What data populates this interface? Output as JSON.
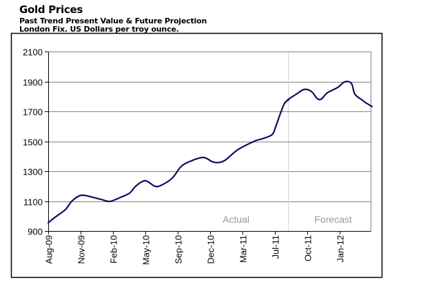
{
  "header": {
    "title": "Gold Prices",
    "subtitle_1": "Past Trend Present Value & Future Projection",
    "subtitle_2": "London Fix. US Dollars per troy ounce."
  },
  "chart_data": {
    "type": "line",
    "title": "Gold Prices",
    "subtitle": "Past Trend Present Value & Future Projection — London Fix. US Dollars per troy ounce.",
    "xlabel": "",
    "ylabel": "US Dollars per troy ounce",
    "ylim": [
      900,
      2100
    ],
    "yticks": [
      900,
      1100,
      1300,
      1500,
      1700,
      1900,
      2100
    ],
    "grid": true,
    "legend": "none",
    "x_tick_labels": [
      "Aug-09",
      "Nov-09",
      "Feb-10",
      "May-10",
      "Sep-10",
      "Dec-10",
      "Mar-11",
      "Jul-11",
      "Oct-11",
      "Jan-12"
    ],
    "x_range": [
      0,
      10
    ],
    "divider_at": 7.4,
    "region_labels": [
      {
        "text": "Actual",
        "at": 5.8
      },
      {
        "text": "Forecast",
        "at": 8.8
      }
    ],
    "series": [
      {
        "name": "Gold Price",
        "color": "#0d0d5e",
        "x": [
          0,
          0.21,
          0.53,
          0.74,
          1.02,
          1.38,
          1.7,
          1.91,
          2.23,
          2.51,
          2.72,
          3.0,
          3.3,
          3.51,
          3.83,
          4.09,
          4.36,
          4.79,
          5.11,
          5.43,
          5.85,
          6.38,
          6.6,
          6.91,
          7.02,
          7.17,
          7.3,
          7.43,
          7.4,
          7.66,
          7.91,
          8.13,
          8.3,
          8.43,
          8.62,
          8.94,
          9.15,
          9.36,
          9.47,
          9.68,
          9.79,
          10.0
        ],
        "values": [
          955,
          992,
          1043,
          1102,
          1139,
          1125,
          1107,
          1098,
          1125,
          1153,
          1203,
          1236,
          1199,
          1208,
          1254,
          1328,
          1364,
          1392,
          1360,
          1369,
          1443,
          1502,
          1516,
          1544,
          1594,
          1686,
          1755,
          1778,
          1778,
          1815,
          1847,
          1833,
          1787,
          1782,
          1824,
          1860,
          1897,
          1888,
          1815,
          1778,
          1760,
          1732
        ]
      }
    ]
  }
}
